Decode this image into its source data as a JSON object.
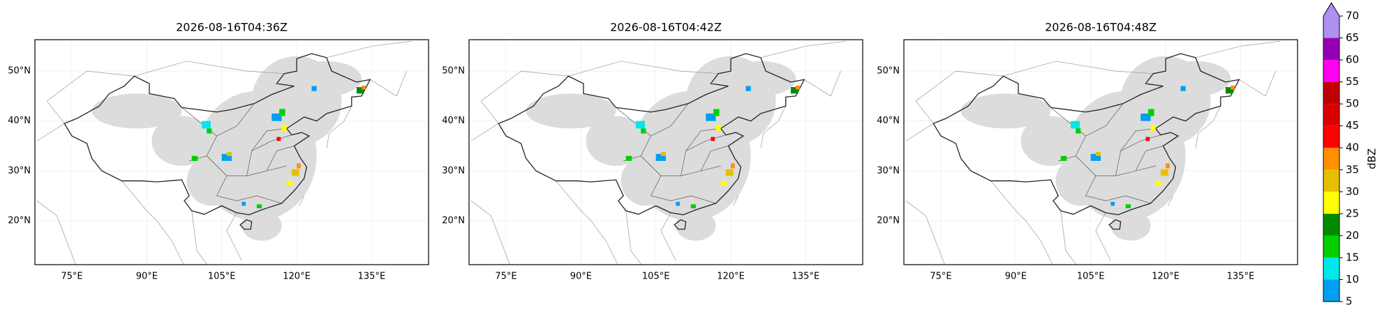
{
  "panels": [
    {
      "title": "2026-08-16T04:36Z"
    },
    {
      "title": "2026-08-16T04:42Z"
    },
    {
      "title": "2026-08-16T04:48Z"
    }
  ],
  "lon_range": [
    67.6,
    146.4
  ],
  "lat_range": [
    11.2,
    56.3
  ],
  "xticks": [
    {
      "value": 75,
      "label": "75°E"
    },
    {
      "value": 90,
      "label": "90°E"
    },
    {
      "value": 105,
      "label": "105°E"
    },
    {
      "value": 120,
      "label": "120°E"
    },
    {
      "value": 135,
      "label": "135°E"
    }
  ],
  "yticks": [
    {
      "value": 20,
      "label": "20°N"
    },
    {
      "value": 30,
      "label": "30°N"
    },
    {
      "value": 40,
      "label": "40°N"
    },
    {
      "value": 50,
      "label": "50°N"
    }
  ],
  "colorbar": {
    "label": "dBZ",
    "ticks": [
      5,
      10,
      15,
      20,
      25,
      30,
      35,
      40,
      45,
      50,
      55,
      60,
      65,
      70
    ],
    "colors": [
      "#009ff0",
      "#00e8e8",
      "#00d000",
      "#008c00",
      "#ffff00",
      "#e6c000",
      "#ff9000",
      "#ff0000",
      "#d80000",
      "#c00000",
      "#ff00f0",
      "#9600b4",
      "#ad90f0"
    ]
  }
}
